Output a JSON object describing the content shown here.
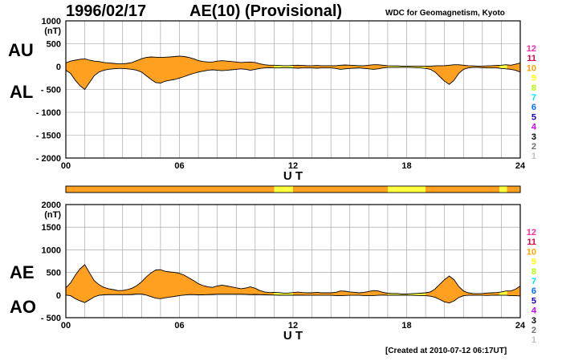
{
  "header": {
    "date": "1996/02/17",
    "title": "AE(10) (Provisional)",
    "attribution": "WDC for Geomagnetism, Kyoto"
  },
  "footer": {
    "created": "[Created at 2010-07-12 06:17UT]"
  },
  "colors": {
    "fill": "#ffa020",
    "fill_yellow": "#ffff40",
    "grid": "#999999",
    "axis": "#000000"
  },
  "level_legend": {
    "levels": [
      "12",
      "11",
      "10",
      "9",
      "8",
      "7",
      "6",
      "5",
      "4",
      "3",
      "2",
      "1"
    ],
    "colors": [
      "#ff2aa0",
      "#dd0044",
      "#ffa000",
      "#ffff00",
      "#b0ff00",
      "#00e0ff",
      "#0070ff",
      "#2000c0",
      "#d000ff",
      "#000000",
      "#707070",
      "#c0c0c0"
    ]
  },
  "chart_data": [
    {
      "type": "area",
      "panel": "AU/AL",
      "series_labels": [
        "AU",
        "AL"
      ],
      "unit": "(nT)",
      "xlabel": "U T",
      "xlim": [
        0,
        24
      ],
      "xticks": [
        "00",
        "06",
        "12",
        "18",
        "24"
      ],
      "ylim": [
        -2000,
        1000
      ],
      "yticks": [
        "1000",
        "500",
        "0",
        "- 500",
        "- 1000",
        "- 1500",
        "- 2000"
      ],
      "ytick_values": [
        1000,
        500,
        0,
        -500,
        -1000,
        -1500,
        -2000
      ],
      "grid": true,
      "x": [
        0,
        0.25,
        0.5,
        0.75,
        1,
        1.25,
        1.5,
        1.75,
        2,
        2.25,
        2.5,
        2.75,
        3,
        3.25,
        3.5,
        3.75,
        4,
        4.25,
        4.5,
        4.75,
        5,
        5.25,
        5.5,
        5.75,
        6,
        6.25,
        6.5,
        6.75,
        7,
        7.25,
        7.5,
        7.75,
        8,
        8.25,
        8.5,
        8.75,
        9,
        9.25,
        9.5,
        9.75,
        10,
        10.25,
        10.5,
        10.75,
        11,
        11.25,
        11.5,
        11.75,
        12,
        12.25,
        12.5,
        12.75,
        13,
        13.25,
        13.5,
        13.75,
        14,
        14.25,
        14.5,
        14.75,
        15,
        15.25,
        15.5,
        15.75,
        16,
        16.25,
        16.5,
        16.75,
        17,
        17.25,
        17.5,
        17.75,
        18,
        18.25,
        18.5,
        18.75,
        19,
        19.25,
        19.5,
        19.75,
        20,
        20.25,
        20.5,
        20.75,
        21,
        21.25,
        21.5,
        21.75,
        22,
        22.25,
        22.5,
        22.75,
        23,
        23.25,
        23.5,
        23.75,
        24
      ],
      "au": [
        80,
        120,
        140,
        160,
        170,
        140,
        120,
        110,
        90,
        80,
        70,
        60,
        60,
        70,
        90,
        130,
        170,
        200,
        210,
        205,
        200,
        205,
        210,
        220,
        230,
        220,
        200,
        170,
        130,
        110,
        100,
        100,
        120,
        130,
        120,
        110,
        100,
        90,
        95,
        100,
        90,
        60,
        40,
        30,
        30,
        25,
        20,
        20,
        25,
        30,
        25,
        20,
        20,
        25,
        20,
        20,
        20,
        20,
        30,
        35,
        30,
        25,
        20,
        20,
        30,
        40,
        40,
        30,
        20,
        15,
        15,
        10,
        10,
        10,
        10,
        10,
        10,
        10,
        15,
        20,
        20,
        30,
        40,
        40,
        30,
        20,
        15,
        10,
        10,
        15,
        20,
        25,
        30,
        40,
        30,
        50,
        80,
        60,
        40
      ],
      "al": [
        -80,
        -150,
        -300,
        -420,
        -500,
        -350,
        -200,
        -120,
        -80,
        -60,
        -50,
        -40,
        -40,
        -50,
        -60,
        -80,
        -120,
        -200,
        -280,
        -350,
        -360,
        -320,
        -300,
        -280,
        -250,
        -220,
        -180,
        -150,
        -120,
        -100,
        -80,
        -70,
        -80,
        -90,
        -80,
        -70,
        -60,
        -50,
        -60,
        -80,
        -60,
        -40,
        -30,
        -25,
        -30,
        -30,
        -25,
        -25,
        -30,
        -35,
        -30,
        -30,
        -30,
        -35,
        -30,
        -30,
        -30,
        -40,
        -60,
        -50,
        -40,
        -35,
        -30,
        -40,
        -50,
        -60,
        -50,
        -30,
        -20,
        -20,
        -20,
        -15,
        -15,
        -20,
        -25,
        -30,
        -40,
        -60,
        -120,
        -220,
        -320,
        -390,
        -300,
        -150,
        -60,
        -30,
        -20,
        -20,
        -25,
        -30,
        -30,
        -30,
        -40,
        -50,
        -60,
        -80,
        -120,
        -120,
        -80
      ],
      "quality_bands": [
        {
          "from": 11.0,
          "to": 12.0
        },
        {
          "from": 17.0,
          "to": 19.0
        },
        {
          "from": 22.9,
          "to": 23.3
        }
      ]
    },
    {
      "type": "area",
      "panel": "AE/AO",
      "series_labels": [
        "AE",
        "AO"
      ],
      "unit": "(nT)",
      "xlabel": "U T",
      "xlim": [
        0,
        24
      ],
      "xticks": [
        "00",
        "06",
        "12",
        "18",
        "24"
      ],
      "ylim": [
        -500,
        2000
      ],
      "yticks": [
        "2000",
        "1500",
        "1000",
        "500",
        "0",
        "- 500"
      ],
      "ytick_values": [
        2000,
        1500,
        1000,
        500,
        0,
        -500
      ],
      "grid": true,
      "x": [
        0,
        0.25,
        0.5,
        0.75,
        1,
        1.25,
        1.5,
        1.75,
        2,
        2.25,
        2.5,
        2.75,
        3,
        3.25,
        3.5,
        3.75,
        4,
        4.25,
        4.5,
        4.75,
        5,
        5.25,
        5.5,
        5.75,
        6,
        6.25,
        6.5,
        6.75,
        7,
        7.25,
        7.5,
        7.75,
        8,
        8.25,
        8.5,
        8.75,
        9,
        9.25,
        9.5,
        9.75,
        10,
        10.25,
        10.5,
        10.75,
        11,
        11.25,
        11.5,
        11.75,
        12,
        12.25,
        12.5,
        12.75,
        13,
        13.25,
        13.5,
        13.75,
        14,
        14.25,
        14.5,
        14.75,
        15,
        15.25,
        15.5,
        15.75,
        16,
        16.25,
        16.5,
        16.75,
        17,
        17.25,
        17.5,
        17.75,
        18,
        18.25,
        18.5,
        18.75,
        19,
        19.25,
        19.5,
        19.75,
        20,
        20.25,
        20.5,
        20.75,
        21,
        21.25,
        21.5,
        21.75,
        22,
        22.25,
        22.5,
        22.75,
        23,
        23.25,
        23.5,
        23.75,
        24
      ],
      "ae": [
        160,
        270,
        440,
        580,
        670,
        490,
        320,
        230,
        170,
        140,
        120,
        100,
        100,
        120,
        150,
        210,
        290,
        400,
        490,
        555,
        560,
        525,
        510,
        500,
        480,
        440,
        380,
        320,
        250,
        210,
        180,
        170,
        200,
        220,
        200,
        180,
        160,
        140,
        155,
        180,
        150,
        100,
        70,
        55,
        60,
        55,
        45,
        45,
        55,
        65,
        55,
        50,
        50,
        60,
        50,
        50,
        50,
        60,
        90,
        85,
        70,
        60,
        50,
        60,
        80,
        100,
        90,
        60,
        40,
        35,
        35,
        25,
        25,
        30,
        35,
        40,
        50,
        70,
        135,
        240,
        340,
        420,
        340,
        190,
        90,
        50,
        35,
        30,
        35,
        45,
        50,
        55,
        70,
        90,
        90,
        130,
        200,
        180,
        120
      ],
      "ao": [
        0,
        -15,
        -80,
        -130,
        -165,
        -105,
        -40,
        -5,
        5,
        10,
        10,
        10,
        10,
        10,
        15,
        25,
        25,
        0,
        -35,
        -70,
        -80,
        -60,
        -45,
        -30,
        -10,
        0,
        10,
        10,
        5,
        5,
        10,
        15,
        20,
        20,
        20,
        20,
        20,
        20,
        17,
        10,
        15,
        10,
        5,
        2,
        0,
        -3,
        -3,
        -3,
        -3,
        -3,
        -3,
        -5,
        -5,
        -5,
        -5,
        -5,
        -5,
        -10,
        -15,
        -8,
        -5,
        -5,
        -5,
        -10,
        -10,
        -10,
        -5,
        0,
        -3,
        -3,
        -3,
        -3,
        -3,
        -5,
        -8,
        -10,
        -15,
        -25,
        -50,
        -100,
        -150,
        -175,
        -130,
        -55,
        -15,
        -5,
        -3,
        -5,
        -5,
        -8,
        -5,
        -3,
        -5,
        -5,
        -15,
        -15,
        -20,
        -30,
        -20
      ],
      "quality_bands": [
        {
          "from": 11.0,
          "to": 12.0
        },
        {
          "from": 17.0,
          "to": 19.0
        },
        {
          "from": 22.9,
          "to": 23.3
        }
      ]
    }
  ]
}
